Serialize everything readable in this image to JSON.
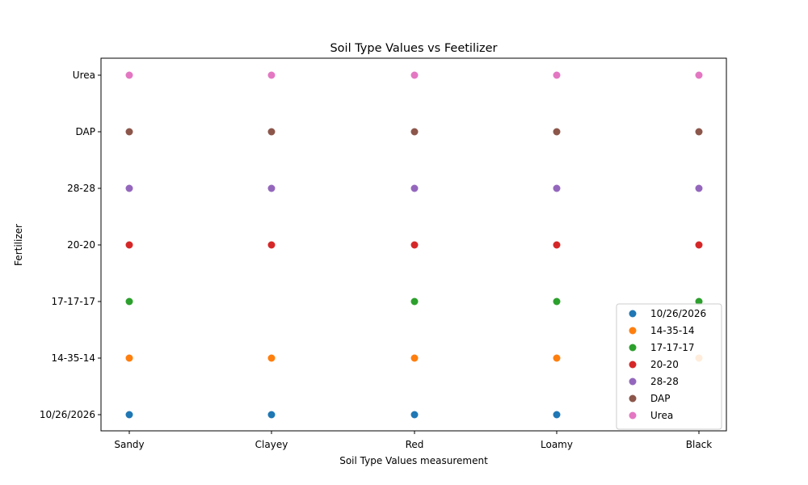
{
  "chart_data": {
    "type": "scatter",
    "title": "Soil Type Values vs Feetilizer",
    "xlabel": "Soil Type Values measurement",
    "ylabel": "Fertilizer",
    "x_categories": [
      "Sandy",
      "Clayey",
      "Red",
      "Loamy",
      "Black"
    ],
    "y_categories": [
      "10/26/2026",
      "14-35-14",
      "17-17-17",
      "20-20",
      "28-28",
      "DAP",
      "Urea"
    ],
    "legend_position": "lower-right",
    "grid": false,
    "series": [
      {
        "name": "10/26/2026",
        "color": "#1f77b4",
        "points": [
          [
            "Sandy",
            "10/26/2026"
          ],
          [
            "Clayey",
            "10/26/2026"
          ],
          [
            "Red",
            "10/26/2026"
          ],
          [
            "Loamy",
            "10/26/2026"
          ]
        ]
      },
      {
        "name": "14-35-14",
        "color": "#ff7f0e",
        "points": [
          [
            "Sandy",
            "14-35-14"
          ],
          [
            "Clayey",
            "14-35-14"
          ],
          [
            "Red",
            "14-35-14"
          ],
          [
            "Loamy",
            "14-35-14"
          ],
          [
            "Black",
            "14-35-14"
          ]
        ]
      },
      {
        "name": "17-17-17",
        "color": "#2ca02c",
        "points": [
          [
            "Sandy",
            "17-17-17"
          ],
          [
            "Red",
            "17-17-17"
          ],
          [
            "Loamy",
            "17-17-17"
          ],
          [
            "Black",
            "17-17-17"
          ]
        ]
      },
      {
        "name": "20-20",
        "color": "#d62728",
        "points": [
          [
            "Sandy",
            "20-20"
          ],
          [
            "Clayey",
            "20-20"
          ],
          [
            "Red",
            "20-20"
          ],
          [
            "Loamy",
            "20-20"
          ],
          [
            "Black",
            "20-20"
          ]
        ]
      },
      {
        "name": "28-28",
        "color": "#9467bd",
        "points": [
          [
            "Sandy",
            "28-28"
          ],
          [
            "Clayey",
            "28-28"
          ],
          [
            "Red",
            "28-28"
          ],
          [
            "Loamy",
            "28-28"
          ],
          [
            "Black",
            "28-28"
          ]
        ]
      },
      {
        "name": "DAP",
        "color": "#8c564b",
        "points": [
          [
            "Sandy",
            "DAP"
          ],
          [
            "Clayey",
            "DAP"
          ],
          [
            "Red",
            "DAP"
          ],
          [
            "Loamy",
            "DAP"
          ],
          [
            "Black",
            "DAP"
          ]
        ]
      },
      {
        "name": "Urea",
        "color": "#e377c2",
        "points": [
          [
            "Sandy",
            "Urea"
          ],
          [
            "Clayey",
            "Urea"
          ],
          [
            "Red",
            "Urea"
          ],
          [
            "Loamy",
            "Urea"
          ],
          [
            "Black",
            "Urea"
          ]
        ]
      }
    ]
  }
}
